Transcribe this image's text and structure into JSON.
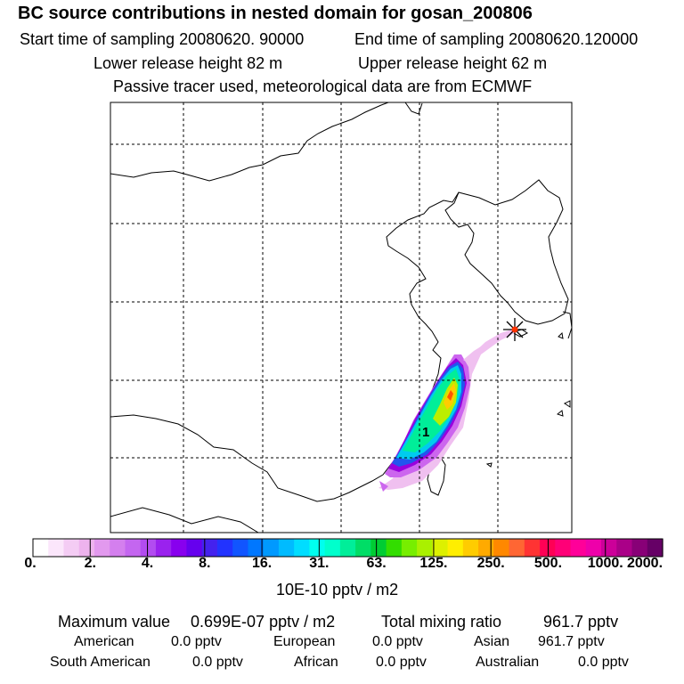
{
  "header": {
    "title": "BC  source contributions in nested domain for gosan_200806",
    "start_label": "Start time of sampling 20080620. 90000",
    "end_label": "End time of sampling 20080620.120000",
    "lower_label": "Lower release height   82 m",
    "upper_label": "Upper release height   62 m",
    "tracer_note": "Passive tracer used, meteorological data are from ECMWF"
  },
  "map": {
    "source_marker_label": "1",
    "plume_colors": [
      "#f0c0f0",
      "#cc66ee",
      "#9900dd",
      "#2255ee",
      "#00ccee",
      "#00ee99",
      "#bbee00",
      "#ffcc00",
      "#ff5500"
    ]
  },
  "colorbar": {
    "colors": [
      "#ffffff",
      "#fbe6fb",
      "#f4ccf4",
      "#eeb3ee",
      "#e299ee",
      "#d47fee",
      "#c466f0",
      "#b24cf0",
      "#9a22ee",
      "#8800ee",
      "#6600ee",
      "#4422ee",
      "#2233ff",
      "#1155ff",
      "#0077ff",
      "#0099ff",
      "#00bbff",
      "#00ddff",
      "#00ffee",
      "#00ffcc",
      "#00ee99",
      "#00dd66",
      "#00cc33",
      "#33dd00",
      "#77ee00",
      "#aaf000",
      "#ddf000",
      "#ffee00",
      "#ffcc00",
      "#ffaa00",
      "#ff8800",
      "#ff6633",
      "#ff3333",
      "#ff0055",
      "#ff0077",
      "#ff0099",
      "#ee00aa",
      "#cc0099",
      "#aa0088",
      "#880077",
      "#660066"
    ],
    "tick_labels": [
      "0.",
      "2.",
      "4.",
      "8.",
      "16.",
      "31.",
      "63.",
      "125.",
      "250.",
      "500.",
      "1000.",
      "2000."
    ],
    "units_label": "10E-10 pptv / m2"
  },
  "stats": {
    "max_label": "Maximum value",
    "max_value": "0.699E-07 pptv / m2",
    "total_label": "Total mixing ratio",
    "total_value": "961.7 pptv",
    "regions": [
      {
        "name": "American",
        "value": "0.0 pptv"
      },
      {
        "name": "European",
        "value": "0.0 pptv"
      },
      {
        "name": "Asian",
        "value": "961.7 pptv"
      },
      {
        "name": "South American",
        "value": "0.0 pptv"
      },
      {
        "name": "African",
        "value": "0.0 pptv"
      },
      {
        "name": "Australian",
        "value": "0.0 pptv"
      }
    ]
  }
}
